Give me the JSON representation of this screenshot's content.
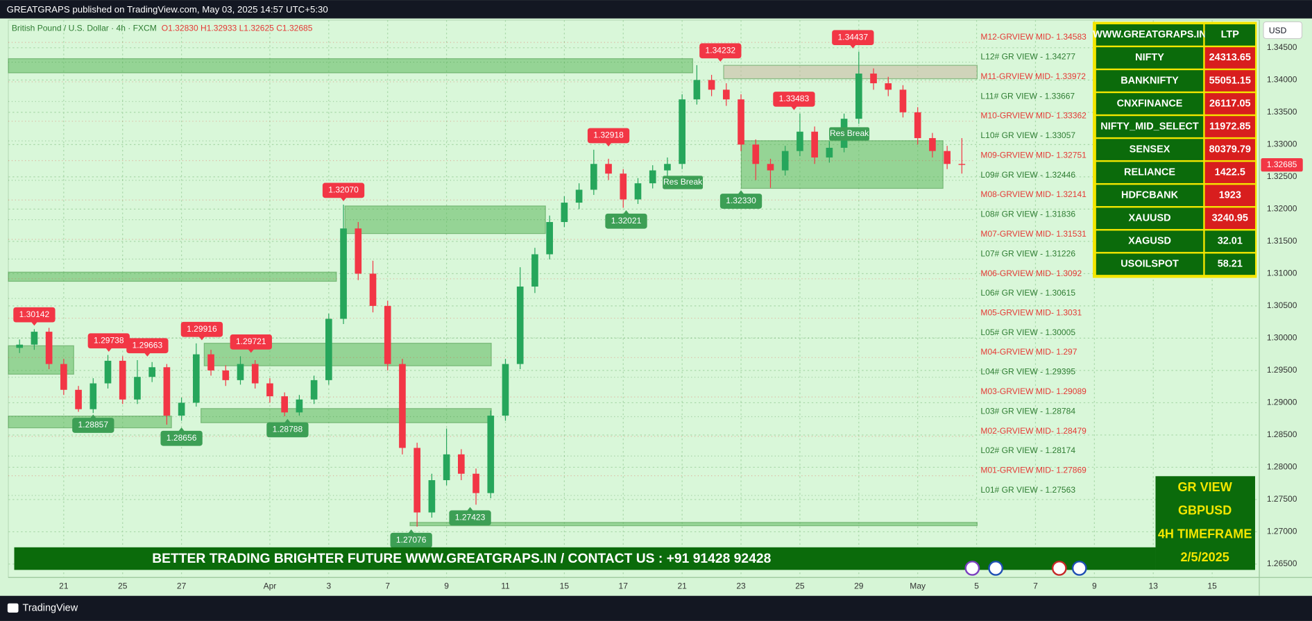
{
  "header": {
    "published": "GREATGRAPS published on TradingView.com, May 03, 2025 14:57 UTC+5:30",
    "footer": "TradingView"
  },
  "chart_data": {
    "type": "candlestick",
    "symbol": "British Pound / U.S. Dollar · 4h · FXCM",
    "ohlc_text": "O1.32830  H1.32933  L1.32625  C1.32685",
    "currency": "USD",
    "colors": {
      "up": "#26a65b",
      "down": "#f23645"
    },
    "grid": true,
    "xlim": [
      -1.88,
      40.6
    ],
    "ylim": [
      1.26293,
      1.34928
    ],
    "xticks": [
      {
        "value": 0,
        "label": "21"
      },
      {
        "value": 2,
        "label": "25"
      },
      {
        "value": 4,
        "label": "27"
      },
      {
        "value": 7,
        "label": "Apr"
      },
      {
        "value": 9,
        "label": "3"
      },
      {
        "value": 11,
        "label": "7"
      },
      {
        "value": 13,
        "label": "9"
      },
      {
        "value": 15,
        "label": "11"
      },
      {
        "value": 17,
        "label": "15"
      },
      {
        "value": 19,
        "label": "17"
      },
      {
        "value": 21,
        "label": "21"
      },
      {
        "value": 23,
        "label": "23"
      },
      {
        "value": 25,
        "label": "25"
      },
      {
        "value": 27,
        "label": "29"
      },
      {
        "value": 29,
        "label": "May"
      },
      {
        "value": 31,
        "label": "5"
      },
      {
        "value": 33,
        "label": "7"
      },
      {
        "value": 35,
        "label": "9"
      },
      {
        "value": 37,
        "label": "13"
      },
      {
        "value": 39,
        "label": "15"
      }
    ],
    "yticks": [
      {
        "value": 1.345,
        "label": "1.34500"
      },
      {
        "value": 1.34,
        "label": "1.34000"
      },
      {
        "value": 1.335,
        "label": "1.33500"
      },
      {
        "value": 1.33,
        "label": "1.33000"
      },
      {
        "value": 1.325,
        "label": "1.32500"
      },
      {
        "value": 1.32,
        "label": "1.32000"
      },
      {
        "value": 1.315,
        "label": "1.31500"
      },
      {
        "value": 1.31,
        "label": "1.31000"
      },
      {
        "value": 1.305,
        "label": "1.30500"
      },
      {
        "value": 1.3,
        "label": "1.30000"
      },
      {
        "value": 1.295,
        "label": "1.29500"
      },
      {
        "value": 1.29,
        "label": "1.29000"
      },
      {
        "value": 1.285,
        "label": "1.28500"
      },
      {
        "value": 1.28,
        "label": "1.28000"
      },
      {
        "value": 1.275,
        "label": "1.27500"
      },
      {
        "value": 1.27,
        "label": "1.27000"
      },
      {
        "value": 1.265,
        "label": "1.26500"
      }
    ],
    "x": [
      -1.5,
      -1.0,
      -0.5,
      0.0,
      0.5,
      1.0,
      1.5,
      2.0,
      2.5,
      3.0,
      3.5,
      4.0,
      4.5,
      5.0,
      5.5,
      6.0,
      6.5,
      7.0,
      7.5,
      8.0,
      8.5,
      9.0,
      9.5,
      10.0,
      10.5,
      11.0,
      11.5,
      12.0,
      12.5,
      13.0,
      13.5,
      14.0,
      14.5,
      15.0,
      15.5,
      16.0,
      16.5,
      17.0,
      17.5,
      18.0,
      18.5,
      19.0,
      19.5,
      20.0,
      20.5,
      21.0,
      21.5,
      22.0,
      22.5,
      23.0,
      23.5,
      24.0,
      24.5,
      25.0,
      25.5,
      26.0,
      26.5,
      27.0,
      27.5,
      28.0,
      28.5,
      29.0,
      29.5,
      30.0,
      30.5
    ],
    "open": [
      1.2985,
      1.299,
      1.301,
      1.296,
      1.292,
      1.289,
      1.293,
      1.2965,
      1.2905,
      1.294,
      1.2955,
      1.288,
      1.29,
      1.2975,
      1.295,
      1.2935,
      1.296,
      1.293,
      1.291,
      1.2885,
      1.2905,
      1.2935,
      1.303,
      1.317,
      1.31,
      1.305,
      1.296,
      1.283,
      1.273,
      1.278,
      1.282,
      1.279,
      1.276,
      1.288,
      1.296,
      1.308,
      1.313,
      1.318,
      1.321,
      1.323,
      1.327,
      1.3255,
      1.3215,
      1.324,
      1.326,
      1.327,
      1.337,
      1.34,
      1.3385,
      1.337,
      1.33,
      1.327,
      1.326,
      1.329,
      1.332,
      1.328,
      1.3295,
      1.334,
      1.341,
      1.3395,
      1.3385,
      1.335,
      1.331,
      1.329,
      1.327
    ],
    "high": [
      1.2998,
      1.3014,
      1.3016,
      1.2968,
      1.2926,
      1.2938,
      1.2974,
      1.2972,
      1.2966,
      1.2963,
      1.296,
      1.2908,
      1.2992,
      1.2982,
      1.2958,
      1.2972,
      1.2966,
      1.2938,
      1.2916,
      1.2912,
      1.2942,
      1.3038,
      1.3207,
      1.318,
      1.312,
      1.3058,
      1.2968,
      1.2838,
      1.279,
      1.286,
      1.2828,
      1.2798,
      1.2888,
      1.2968,
      1.311,
      1.314,
      1.319,
      1.322,
      1.324,
      1.3292,
      1.3278,
      1.3262,
      1.3248,
      1.3268,
      1.328,
      1.3378,
      1.3423,
      1.3408,
      1.3395,
      1.3378,
      1.3308,
      1.3278,
      1.3298,
      1.3348,
      1.3328,
      1.3305,
      1.3348,
      1.3444,
      1.3418,
      1.3405,
      1.3392,
      1.3358,
      1.3318,
      1.3298,
      1.331
    ],
    "low": [
      1.2977,
      1.2982,
      1.2952,
      1.2912,
      1.2886,
      1.2884,
      1.2922,
      1.2898,
      1.2898,
      1.2932,
      1.2866,
      1.2872,
      1.2894,
      1.2942,
      1.2926,
      1.2928,
      1.2922,
      1.29,
      1.2879,
      1.288,
      1.2898,
      1.2928,
      1.3022,
      1.309,
      1.304,
      1.295,
      1.282,
      1.2708,
      1.2722,
      1.2772,
      1.278,
      1.2742,
      1.2752,
      1.2872,
      1.2952,
      1.307,
      1.3122,
      1.3172,
      1.32,
      1.3222,
      1.3245,
      1.3202,
      1.3208,
      1.3232,
      1.325,
      1.3262,
      1.3362,
      1.3375,
      1.336,
      1.329,
      1.3245,
      1.3233,
      1.3252,
      1.3282,
      1.327,
      1.3272,
      1.3288,
      1.3332,
      1.3385,
      1.3375,
      1.3342,
      1.33,
      1.328,
      1.3262,
      1.3255
    ],
    "close": [
      1.299,
      1.301,
      1.296,
      1.292,
      1.289,
      1.293,
      1.2965,
      1.2905,
      1.294,
      1.2955,
      1.288,
      1.29,
      1.2975,
      1.295,
      1.2935,
      1.296,
      1.293,
      1.291,
      1.2885,
      1.2905,
      1.2935,
      1.303,
      1.317,
      1.31,
      1.305,
      1.296,
      1.283,
      1.273,
      1.278,
      1.282,
      1.279,
      1.276,
      1.288,
      1.296,
      1.308,
      1.313,
      1.318,
      1.321,
      1.323,
      1.327,
      1.3255,
      1.3215,
      1.324,
      1.326,
      1.327,
      1.337,
      1.34,
      1.3385,
      1.337,
      1.33,
      1.327,
      1.326,
      1.329,
      1.332,
      1.328,
      1.3295,
      1.334,
      1.341,
      1.3395,
      1.3385,
      1.335,
      1.331,
      1.329,
      1.327,
      1.32685
    ],
    "last_price": {
      "value": 1.32685,
      "label": "1.32685"
    },
    "levels": [
      {
        "label": "M12-GRVIEW MID- 1.34583",
        "value": 1.34583,
        "color": "#e53935"
      },
      {
        "label": "L12# GR VIEW -  1.34277",
        "value": 1.34277,
        "color": "#2e7d32"
      },
      {
        "label": "M11-GRVIEW MID- 1.33972",
        "value": 1.33972,
        "color": "#e53935"
      },
      {
        "label": "L11# GR VIEW -  1.33667",
        "value": 1.33667,
        "color": "#2e7d32"
      },
      {
        "label": "M10-GRVIEW MID- 1.33362",
        "value": 1.33362,
        "color": "#e53935"
      },
      {
        "label": "L10# GR VIEW -  1.33057",
        "value": 1.33057,
        "color": "#2e7d32"
      },
      {
        "label": "M09-GRVIEW MID- 1.32751",
        "value": 1.32751,
        "color": "#e53935"
      },
      {
        "label": "L09# GR VIEW -  1.32446",
        "value": 1.32446,
        "color": "#2e7d32"
      },
      {
        "label": "M08-GRVIEW MID- 1.32141",
        "value": 1.32141,
        "color": "#e53935"
      },
      {
        "label": "L08# GR VIEW -  1.31836",
        "value": 1.31836,
        "color": "#2e7d32"
      },
      {
        "label": "M07-GRVIEW MID- 1.31531",
        "value": 1.31531,
        "color": "#e53935"
      },
      {
        "label": "L07# GR VIEW -  1.31226",
        "value": 1.31226,
        "color": "#2e7d32"
      },
      {
        "label": "M06-GRVIEW MID- 1.3092",
        "value": 1.3092,
        "color": "#e53935"
      },
      {
        "label": "L06# GR VIEW -  1.30615",
        "value": 1.30615,
        "color": "#2e7d32"
      },
      {
        "label": "M05-GRVIEW MID- 1.3031",
        "value": 1.3031,
        "color": "#e53935"
      },
      {
        "label": "L05# GR VIEW -  1.30005",
        "value": 1.30005,
        "color": "#2e7d32"
      },
      {
        "label": "M04-GRVIEW MID- 1.297",
        "value": 1.297,
        "color": "#e53935"
      },
      {
        "label": "L04# GR VIEW -  1.29395",
        "value": 1.29395,
        "color": "#2e7d32"
      },
      {
        "label": "M03-GRVIEW MID- 1.29089",
        "value": 1.29089,
        "color": "#e53935"
      },
      {
        "label": "L03# GR VIEW -  1.28784",
        "value": 1.28784,
        "color": "#2e7d32"
      },
      {
        "label": "M02-GRVIEW MID- 1.28479",
        "value": 1.28479,
        "color": "#e53935"
      },
      {
        "label": "L02# GR VIEW -  1.28174",
        "value": 1.28174,
        "color": "#2e7d32"
      },
      {
        "label": "M01-GRVIEW MID- 1.27869",
        "value": 1.27869,
        "color": "#e53935"
      },
      {
        "label": "L01# GR VIEW -  1.27563",
        "value": 1.27563,
        "color": "#2e7d32"
      }
    ],
    "highs": {
      "color": "#f23645",
      "x": [
        -1.0,
        1.53,
        2.84,
        4.69,
        6.36,
        9.5,
        18.5,
        22.3,
        24.8,
        26.8
      ],
      "values": [
        1.30142,
        1.29738,
        1.29663,
        1.29916,
        1.29721,
        1.3207,
        1.32918,
        1.34232,
        1.33483,
        1.34437
      ],
      "value_labels": [
        "1.30142",
        "1.29738",
        "1.29663",
        "1.29916",
        "1.29721",
        "1.32070",
        "1.32918",
        "1.34232",
        "1.33483",
        "1.34437"
      ]
    },
    "lows": {
      "color": "#3d9f55",
      "x": [
        1.0,
        4.0,
        7.6,
        11.8,
        13.8,
        19.1,
        23.0
      ],
      "values": [
        1.28857,
        1.28656,
        1.28788,
        1.27076,
        1.27423,
        1.32021,
        1.3233
      ],
      "value_labels": [
        "1.28857",
        "1.28656",
        "1.28788",
        "1.27076",
        "1.27423",
        "1.32021",
        "1.32330"
      ]
    },
    "zones": [
      {
        "x": [
          -1.88,
          21.36
        ],
        "y": [
          1.34111,
          1.34331
        ],
        "color": "#5cb85c"
      },
      {
        "x": [
          22.41,
          31.02
        ],
        "y": [
          1.3402,
          1.34228
        ],
        "color": "#c9b8a0"
      },
      {
        "x": [
          9.55,
          16.36
        ],
        "y": [
          1.31621,
          1.32049
        ],
        "color": "#5cb85c"
      },
      {
        "x": [
          -1.88,
          9.26
        ],
        "y": [
          1.30881,
          1.31024
        ],
        "color": "#5cb85c"
      },
      {
        "x": [
          4.77,
          14.52
        ],
        "y": [
          1.29572,
          1.29922
        ],
        "color": "#5cb85c"
      },
      {
        "x": [
          -1.88,
          0.34
        ],
        "y": [
          1.29442,
          1.29883
        ],
        "color": "#5cb85c"
      },
      {
        "x": [
          -1.88,
          3.66
        ],
        "y": [
          1.28611,
          1.28793
        ],
        "color": "#5cb85c"
      },
      {
        "x": [
          4.66,
          14.52
        ],
        "y": [
          1.2869,
          1.2891
        ],
        "color": "#5cb85c"
      },
      {
        "x": [
          23.01,
          29.86
        ],
        "y": [
          1.32321,
          1.3306
        ],
        "color": "#5cb85c"
      },
      {
        "x": [
          11.76,
          31.02
        ],
        "y": [
          1.27094,
          1.27146
        ],
        "color": "#5cb85c"
      }
    ],
    "annotations": [
      "Res Break",
      "Res Break"
    ]
  },
  "table": {
    "header": [
      "WWW.GREATGRAPS.IN",
      "LTP"
    ],
    "rows": [
      [
        "NIFTY",
        24313.65
      ],
      [
        "BANKNIFTY",
        55051.15
      ],
      [
        "CNXFINANCE",
        26117.05
      ],
      [
        "NIFTY_MID_SELECT",
        11972.85
      ],
      [
        "SENSEX",
        80379.79
      ],
      [
        "RELIANCE",
        1422.5
      ],
      [
        "HDFCBANK",
        1923
      ],
      [
        "XAUUSD",
        3240.95
      ],
      [
        "XAGUSD",
        32.01
      ],
      [
        "USOILSPOT",
        58.21
      ]
    ],
    "row_colors": [
      "#d81e1e",
      "#d81e1e",
      "#d81e1e",
      "#d81e1e",
      "#d81e1e",
      "#d81e1e",
      "#d81e1e",
      "#d81e1e",
      "#0b6b0b",
      "#0b6b0b"
    ]
  },
  "banner": {
    "left": "BETTER TRADING BRIGHTER FUTURE",
    "right": "WWW.GREATGRAPS.IN / CONTACT US : +91 91428 92428"
  },
  "info_box": [
    "GR VIEW",
    "GBPUSD",
    "4H TIMEFRAME",
    "2/5/2025"
  ]
}
